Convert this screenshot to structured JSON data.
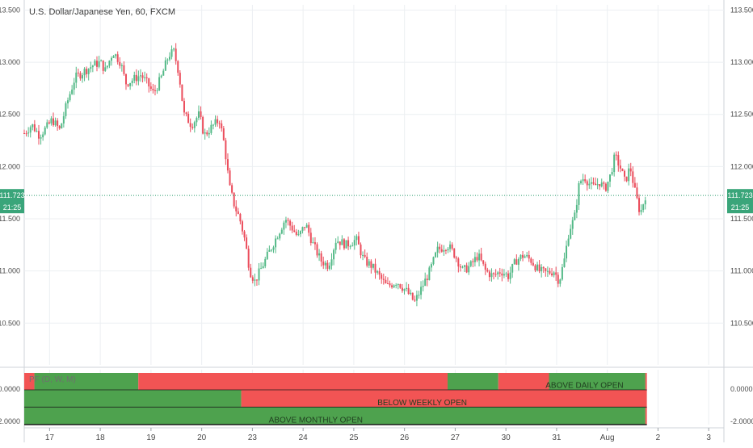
{
  "chart": {
    "title": "U.S. Dollar/Japanese Yen, 60, FXCM",
    "colors": {
      "up": "#53b987",
      "down": "#eb4d5c",
      "grid": "#eceff2",
      "axis_text": "#4a4a4a",
      "price_line": "#2a9d6e",
      "price_tag_bg": "#3aa57a",
      "band_green": "#4ea24e",
      "band_red": "#f25454",
      "band_text": "#1f3d1f"
    }
  },
  "chart_data": {
    "type": "candlestick",
    "title": "U.S. Dollar/Japanese Yen, 60, FXCM",
    "symbol": "U.S. Dollar/Japanese Yen",
    "interval": "60",
    "source": "FXCM",
    "y_ticks": [
      "113.500",
      "113.000",
      "112.500",
      "112.000",
      "111.500",
      "111.000",
      "110.500"
    ],
    "ylim": [
      110.1,
      113.55
    ],
    "x_ticks": [
      {
        "label": "17",
        "x": 0.5
      },
      {
        "label": "18",
        "x": 1.5
      },
      {
        "label": "19",
        "x": 2.5
      },
      {
        "label": "20",
        "x": 3.5
      },
      {
        "label": "23",
        "x": 4.5
      },
      {
        "label": "24",
        "x": 5.5
      },
      {
        "label": "25",
        "x": 6.5
      },
      {
        "label": "26",
        "x": 7.5
      },
      {
        "label": "27",
        "x": 8.5
      },
      {
        "label": "30",
        "x": 9.5
      },
      {
        "label": "31",
        "x": 10.5
      },
      {
        "label": "Aug",
        "x": 11.5
      },
      {
        "label": "2",
        "x": 12.5
      },
      {
        "label": "3",
        "x": 13.5
      }
    ],
    "xlim": [
      0,
      13.8
    ],
    "last_price": "111.723",
    "last_price_value": 111.723,
    "countdown": "21:25",
    "price_path": [
      [
        0.0,
        112.32
      ],
      [
        0.15,
        112.4
      ],
      [
        0.3,
        112.3
      ],
      [
        0.45,
        112.38
      ],
      [
        0.55,
        112.45
      ],
      [
        0.7,
        112.35
      ],
      [
        0.85,
        112.62
      ],
      [
        1.0,
        112.85
      ],
      [
        1.2,
        112.92
      ],
      [
        1.35,
        112.97
      ],
      [
        1.5,
        113.0
      ],
      [
        1.6,
        112.92
      ],
      [
        1.75,
        113.1
      ],
      [
        1.9,
        113.0
      ],
      [
        2.0,
        112.8
      ],
      [
        2.1,
        112.82
      ],
      [
        2.3,
        112.88
      ],
      [
        2.45,
        112.78
      ],
      [
        2.55,
        112.7
      ],
      [
        2.7,
        112.85
      ],
      [
        2.85,
        113.07
      ],
      [
        2.95,
        113.1
      ],
      [
        3.05,
        112.9
      ],
      [
        3.15,
        112.5
      ],
      [
        3.3,
        112.4
      ],
      [
        3.45,
        112.5
      ],
      [
        3.55,
        112.3
      ],
      [
        3.7,
        112.38
      ],
      [
        3.85,
        112.45
      ],
      [
        3.95,
        112.2
      ],
      [
        4.05,
        111.8
      ],
      [
        4.15,
        111.62
      ],
      [
        4.25,
        111.5
      ],
      [
        4.35,
        111.3
      ],
      [
        4.45,
        111.0
      ],
      [
        4.55,
        110.9
      ],
      [
        4.7,
        111.05
      ],
      [
        4.85,
        111.2
      ],
      [
        5.0,
        111.35
      ],
      [
        5.15,
        111.5
      ],
      [
        5.3,
        111.4
      ],
      [
        5.4,
        111.32
      ],
      [
        5.55,
        111.45
      ],
      [
        5.7,
        111.25
      ],
      [
        5.85,
        111.1
      ],
      [
        6.0,
        111.05
      ],
      [
        6.15,
        111.3
      ],
      [
        6.35,
        111.25
      ],
      [
        6.55,
        111.3
      ],
      [
        6.7,
        111.1
      ],
      [
        6.85,
        111.05
      ],
      [
        7.0,
        110.95
      ],
      [
        7.15,
        110.85
      ],
      [
        7.35,
        110.9
      ],
      [
        7.55,
        110.8
      ],
      [
        7.7,
        110.7
      ],
      [
        7.85,
        110.85
      ],
      [
        8.0,
        111.0
      ],
      [
        8.15,
        111.2
      ],
      [
        8.35,
        111.25
      ],
      [
        8.5,
        111.15
      ],
      [
        8.65,
        111.0
      ],
      [
        8.8,
        111.05
      ],
      [
        8.95,
        111.15
      ],
      [
        9.1,
        111.0
      ],
      [
        9.25,
        110.95
      ],
      [
        9.4,
        111.0
      ],
      [
        9.55,
        110.95
      ],
      [
        9.7,
        111.1
      ],
      [
        9.85,
        111.15
      ],
      [
        10.0,
        111.1
      ],
      [
        10.15,
        111.0
      ],
      [
        10.3,
        110.98
      ],
      [
        10.45,
        111.0
      ],
      [
        10.55,
        110.9
      ],
      [
        10.65,
        111.1
      ],
      [
        10.75,
        111.4
      ],
      [
        10.85,
        111.5
      ],
      [
        10.95,
        111.85
      ],
      [
        11.05,
        111.9
      ],
      [
        11.2,
        111.8
      ],
      [
        11.35,
        111.85
      ],
      [
        11.45,
        111.78
      ],
      [
        11.55,
        111.9
      ],
      [
        11.65,
        112.1
      ],
      [
        11.75,
        112.0
      ],
      [
        11.85,
        111.85
      ],
      [
        11.95,
        112.0
      ],
      [
        12.05,
        111.75
      ],
      [
        12.15,
        111.55
      ],
      [
        12.25,
        111.72
      ]
    ],
    "indicator": {
      "label": "PF (D, W, M)",
      "y_ticks": [
        "0.0000",
        "-2.0000"
      ],
      "rows": [
        {
          "segments": [
            {
              "x0": 0.0,
              "x1": 0.2,
              "color": "red"
            },
            {
              "x0": 0.2,
              "x1": 2.25,
              "color": "green"
            },
            {
              "x0": 2.25,
              "x1": 8.35,
              "color": "red"
            },
            {
              "x0": 8.35,
              "x1": 9.35,
              "color": "green"
            },
            {
              "x0": 9.35,
              "x1": 10.35,
              "color": "red"
            },
            {
              "x0": 10.35,
              "x1": 12.25,
              "color": "green"
            },
            {
              "x0": 12.25,
              "x1": 12.28,
              "color": "red"
            }
          ],
          "annotation": "ABOVE DAILY OPEN",
          "annotation_x": 11.05
        },
        {
          "segments": [
            {
              "x0": 0.0,
              "x1": 4.28,
              "color": "green"
            },
            {
              "x0": 4.28,
              "x1": 12.28,
              "color": "red"
            }
          ],
          "annotation": "BELOW WEEKLY OPEN",
          "annotation_x": 7.85
        },
        {
          "segments": [
            {
              "x0": 0.0,
              "x1": 12.25,
              "color": "green"
            },
            {
              "x0": 12.25,
              "x1": 12.28,
              "color": "red"
            }
          ],
          "annotation": "ABOVE MONTHLY OPEN",
          "annotation_x": 5.75
        }
      ]
    }
  }
}
